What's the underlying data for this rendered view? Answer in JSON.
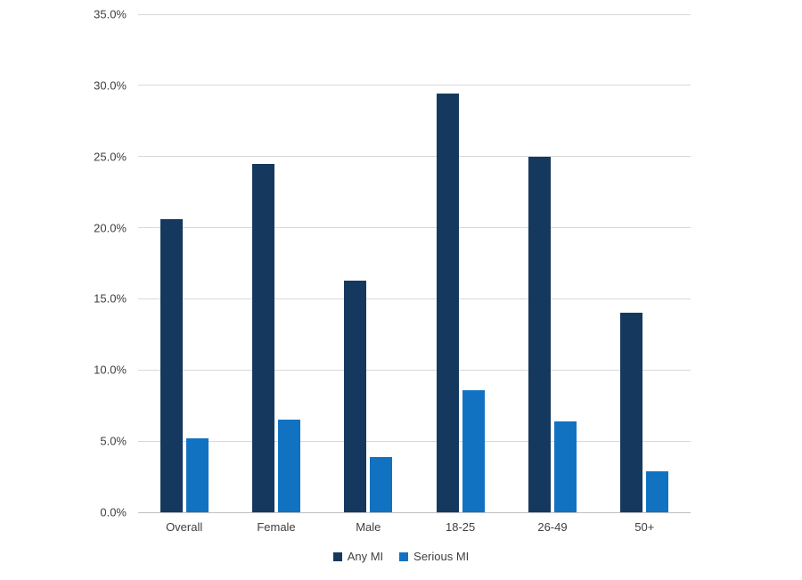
{
  "chart_data": {
    "type": "bar",
    "title": "",
    "xlabel": "",
    "ylabel": "",
    "categories": [
      "Overall",
      "Female",
      "Male",
      "18-25",
      "26-49",
      "50+"
    ],
    "series": [
      {
        "name": "Any MI",
        "color": "#15395E",
        "values": [
          20.6,
          24.5,
          16.3,
          29.4,
          25.0,
          14.0
        ]
      },
      {
        "name": "Serious MI",
        "color": "#1272C2",
        "values": [
          5.2,
          6.5,
          3.9,
          8.6,
          6.4,
          2.9
        ]
      }
    ],
    "unit": "%",
    "ylim": [
      0,
      35
    ],
    "ytick_values": [
      0,
      5,
      10,
      15,
      20,
      25,
      30,
      35
    ],
    "ytick_labels": [
      "0.0%",
      "5.0%",
      "10.0%",
      "15.0%",
      "20.0%",
      "25.0%",
      "30.0%",
      "35.0%"
    ],
    "grid": true,
    "legend_position": "bottom"
  },
  "style": {
    "gridline_color": "#d9d9d9",
    "baseline_color": "#bfbfbf",
    "axis_text_color": "#404040",
    "background": "#ffffff"
  }
}
